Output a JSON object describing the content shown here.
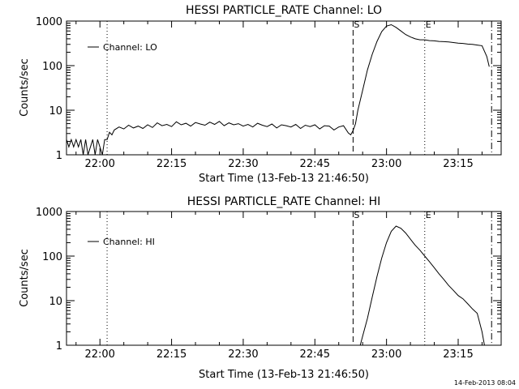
{
  "footer_timestamp": "14-Feb-2013 08:04",
  "chart_data": [
    {
      "type": "line",
      "title": "HESSI PARTICLE_RATE Channel: LO",
      "xlabel": "Start Time (13-Feb-13 21:46:50)",
      "ylabel": "Counts/sec",
      "yscale": "log",
      "ylim": [
        1,
        1000
      ],
      "xlim": [
        "21:53:00",
        "23:24:00"
      ],
      "x_ticks": [
        "22:00",
        "22:15",
        "22:30",
        "22:45",
        "23:00",
        "23:15"
      ],
      "y_ticks": [
        "1",
        "10",
        "100",
        "1000"
      ],
      "legend": {
        "label": "Channel: LO",
        "placement": "top-left"
      },
      "markers": [
        {
          "time": "22:01:30",
          "style": "dotted",
          "label": ""
        },
        {
          "time": "22:53:00",
          "style": "dashed",
          "label": "S"
        },
        {
          "time": "23:08:00",
          "style": "dotted",
          "label": "E"
        },
        {
          "time": "23:22:00",
          "style": "dash-dot",
          "label": ""
        }
      ],
      "series": [
        {
          "x": [
            "21:53:00",
            "21:53:30",
            "21:54:00",
            "21:54:30",
            "21:55:00",
            "21:55:30",
            "21:56:00",
            "21:56:30",
            "21:57:00",
            "21:57:30",
            "21:58:00",
            "21:58:30",
            "21:59:00",
            "21:59:30",
            "22:00:00",
            "22:00:30",
            "22:01:00",
            "22:01:30",
            "22:02:00",
            "22:02:30",
            "22:03:00",
            "22:04:00",
            "22:05:00",
            "22:06:00",
            "22:07:00",
            "22:08:00",
            "22:09:00",
            "22:10:00",
            "22:11:00",
            "22:12:00",
            "22:13:00",
            "22:14:00",
            "22:15:00",
            "22:16:00",
            "22:17:00",
            "22:18:00",
            "22:19:00",
            "22:20:00",
            "22:21:00",
            "22:22:00",
            "22:23:00",
            "22:24:00",
            "22:25:00",
            "22:26:00",
            "22:27:00",
            "22:28:00",
            "22:29:00",
            "22:30:00",
            "22:31:00",
            "22:32:00",
            "22:33:00",
            "22:34:00",
            "22:35:00",
            "22:36:00",
            "22:37:00",
            "22:38:00",
            "22:39:00",
            "22:40:00",
            "22:41:00",
            "22:42:00",
            "22:43:00",
            "22:44:00",
            "22:45:00",
            "22:46:00",
            "22:47:00",
            "22:48:00",
            "22:49:00",
            "22:50:00",
            "22:51:00",
            "22:52:00",
            "22:52:30",
            "22:53:00",
            "22:53:30",
            "22:54:00",
            "22:55:00",
            "22:56:00",
            "22:57:00",
            "22:58:00",
            "22:59:00",
            "23:00:00",
            "23:01:00",
            "23:02:00",
            "23:03:00",
            "23:04:00",
            "23:05:00",
            "23:06:00",
            "23:07:00",
            "23:08:00",
            "23:09:00",
            "23:10:00",
            "23:11:00",
            "23:12:00",
            "23:13:00",
            "23:14:00",
            "23:15:00",
            "23:16:00",
            "23:17:00",
            "23:18:00",
            "23:19:00",
            "23:20:00",
            "23:21:00",
            "23:21:30"
          ],
          "values": [
            2.2,
            1.5,
            2.2,
            1.5,
            2.2,
            1.5,
            2.2,
            1,
            2.2,
            1,
            1.5,
            2.2,
            1,
            2.2,
            1.5,
            1,
            2.2,
            2.2,
            3.2,
            2.8,
            3.6,
            4.2,
            3.8,
            4.6,
            4,
            4.4,
            3.9,
            4.7,
            4.1,
            5.2,
            4.5,
            4.8,
            4.3,
            5.5,
            4.7,
            5.1,
            4.4,
            5.3,
            4.9,
            4.6,
            5.4,
            4.8,
            5.6,
            4.5,
            5.2,
            4.7,
            5,
            4.4,
            4.8,
            4.2,
            5.1,
            4.6,
            4.3,
            4.9,
            4,
            4.7,
            4.5,
            4.2,
            4.8,
            3.9,
            4.6,
            4.3,
            4.7,
            3.8,
            4.5,
            4.4,
            3.6,
            4.2,
            4.5,
            3.1,
            2.8,
            3.5,
            5,
            10,
            28,
            80,
            180,
            350,
            580,
            770,
            830,
            720,
            600,
            500,
            440,
            400,
            380,
            380,
            365,
            360,
            350,
            345,
            340,
            330,
            320,
            315,
            305,
            300,
            290,
            280,
            160,
            95
          ]
        }
      ]
    },
    {
      "type": "line",
      "title": "HESSI PARTICLE_RATE Channel: HI",
      "xlabel": "Start Time (13-Feb-13 21:46:50)",
      "ylabel": "Counts/sec",
      "yscale": "log",
      "ylim": [
        1,
        1000
      ],
      "xlim": [
        "21:53:00",
        "23:24:00"
      ],
      "x_ticks": [
        "22:00",
        "22:15",
        "22:30",
        "22:45",
        "23:00",
        "23:15"
      ],
      "y_ticks": [
        "1",
        "10",
        "100",
        "1000"
      ],
      "legend": {
        "label": "Channel: HI",
        "placement": "top-left"
      },
      "markers": [
        {
          "time": "22:01:30",
          "style": "dotted",
          "label": ""
        },
        {
          "time": "22:53:00",
          "style": "dashed",
          "label": "S"
        },
        {
          "time": "23:08:00",
          "style": "dotted",
          "label": "E"
        },
        {
          "time": "23:22:00",
          "style": "dash-dot",
          "label": ""
        }
      ],
      "series": [
        {
          "x": [
            "22:54:30",
            "22:55:00",
            "22:56:00",
            "22:57:00",
            "22:58:00",
            "22:59:00",
            "23:00:00",
            "23:01:00",
            "23:02:00",
            "23:03:00",
            "23:04:00",
            "23:05:00",
            "23:06:00",
            "23:07:00",
            "23:08:00",
            "23:09:00",
            "23:10:00",
            "23:11:00",
            "23:12:00",
            "23:13:00",
            "23:14:00",
            "23:15:00",
            "23:16:00",
            "23:17:00",
            "23:18:00",
            "23:19:00",
            "23:20:00",
            "23:20:30"
          ],
          "values": [
            1,
            1.6,
            4,
            12,
            35,
            90,
            200,
            360,
            470,
            420,
            330,
            240,
            175,
            135,
            100,
            75,
            55,
            40,
            30,
            22,
            17,
            13,
            11,
            8.5,
            6.5,
            5.2,
            2,
            1
          ]
        }
      ]
    }
  ]
}
